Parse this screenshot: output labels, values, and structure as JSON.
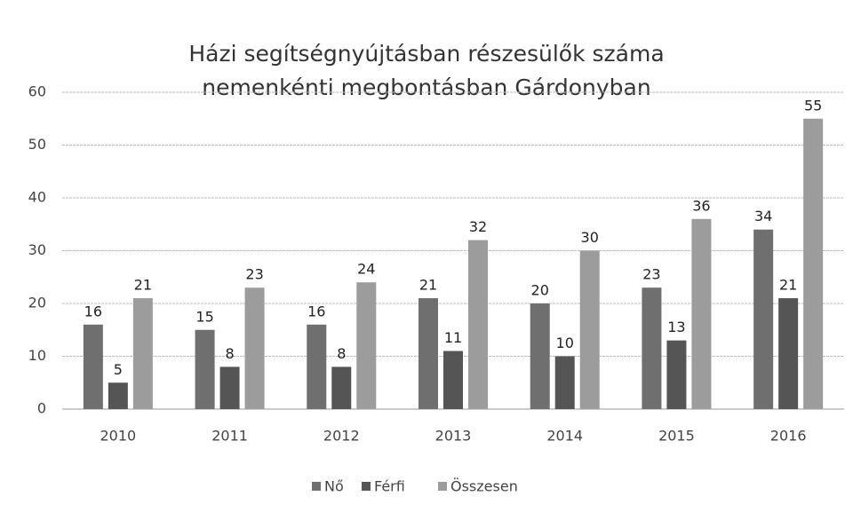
{
  "chart_data": {
    "type": "bar",
    "title": [
      "Házi segítségnyújtásban részesülők száma",
      "nemenkénti megbontásban Gárdonyban"
    ],
    "categories": [
      "2010",
      "2011",
      "2012",
      "2013",
      "2014",
      "2015",
      "2016"
    ],
    "series": [
      {
        "name": "Nő",
        "color": "#6f6f6f",
        "values": [
          16,
          15,
          16,
          21,
          20,
          23,
          34
        ]
      },
      {
        "name": "Férfi",
        "color": "#555555",
        "values": [
          5,
          8,
          8,
          11,
          10,
          13,
          21
        ]
      },
      {
        "name": "Összesen",
        "color": "#9c9c9c",
        "values": [
          21,
          23,
          24,
          32,
          30,
          36,
          55
        ]
      }
    ],
    "ylim": [
      0,
      60
    ],
    "yticks": [
      0,
      10,
      20,
      30,
      40,
      50,
      60
    ],
    "grid": true,
    "legend": "bottom"
  }
}
